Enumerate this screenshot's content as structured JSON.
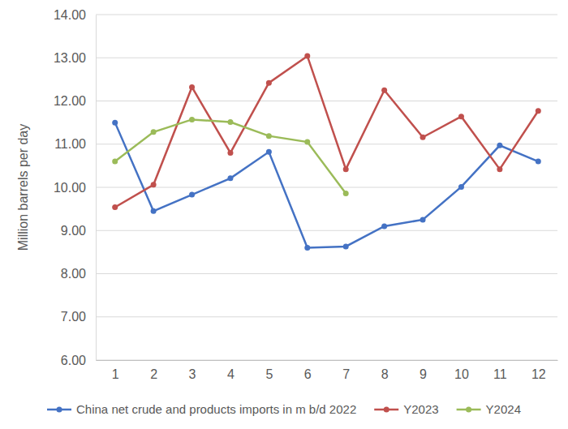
{
  "chart_data": {
    "type": "line",
    "y_label": "Million barrels per day",
    "categories": [
      "1",
      "2",
      "3",
      "4",
      "5",
      "6",
      "7",
      "8",
      "9",
      "10",
      "11",
      "12"
    ],
    "series": [
      {
        "name": "China net crude and products imports in m b/d 2022",
        "color": "#4472c4",
        "marker": "circle",
        "values": [
          11.5,
          9.45,
          9.83,
          10.21,
          10.82,
          8.6,
          8.63,
          9.1,
          9.25,
          10.01,
          10.97,
          10.6
        ]
      },
      {
        "name": "Y2023",
        "color": "#c0504d",
        "marker": "circle",
        "values": [
          9.54,
          10.06,
          12.32,
          10.8,
          12.42,
          13.04,
          10.42,
          12.25,
          11.16,
          11.64,
          10.42,
          11.77
        ]
      },
      {
        "name": "Y2024",
        "color": "#9bbb59",
        "marker": "circle",
        "values": [
          10.6,
          11.28,
          11.57,
          11.51,
          11.19,
          11.05,
          9.86,
          null,
          null,
          null,
          null,
          null
        ]
      }
    ],
    "ylim": [
      6,
      14
    ],
    "yticks": [
      {
        "value": 6,
        "label": "6.00"
      },
      {
        "value": 7,
        "label": "7.00"
      },
      {
        "value": 8,
        "label": "8.00"
      },
      {
        "value": 9,
        "label": "9.00"
      },
      {
        "value": 10,
        "label": "10.00"
      },
      {
        "value": 11,
        "label": "11.00"
      },
      {
        "value": 12,
        "label": "12.00"
      },
      {
        "value": 13,
        "label": "13.00"
      },
      {
        "value": 14,
        "label": "14.00"
      }
    ],
    "grid": true,
    "legend": "bottom"
  }
}
